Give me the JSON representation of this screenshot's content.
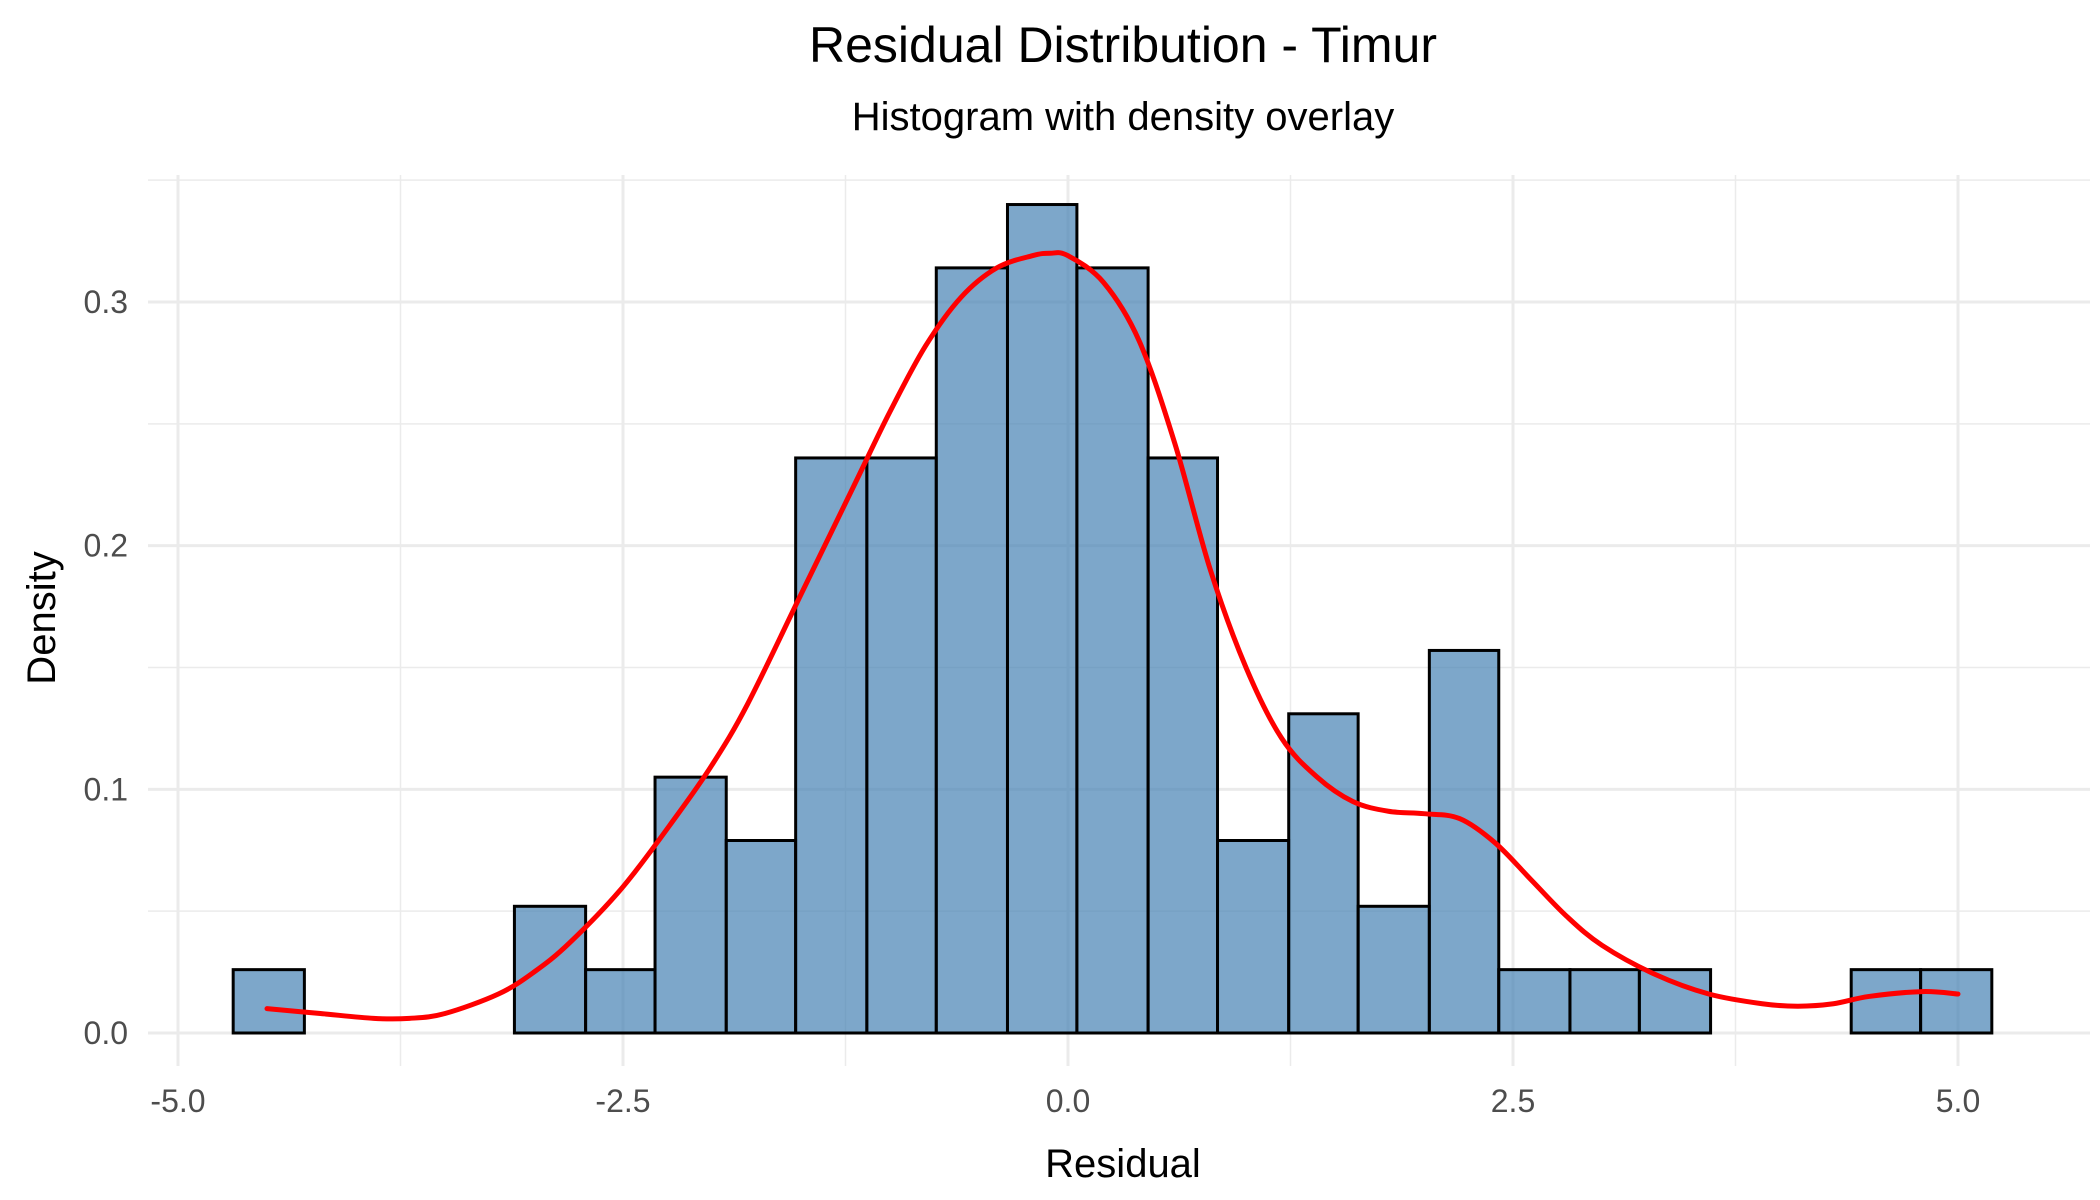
{
  "chart_data": {
    "type": "bar",
    "title": "Residual Distribution - Timur",
    "subtitle": "Histogram with density overlay",
    "xlabel": "Residual",
    "ylabel": "Density",
    "xlim": [
      -5.0,
      5.25
    ],
    "ylim": [
      0,
      0.345
    ],
    "x_ticks": [
      -5.0,
      -2.5,
      0.0,
      2.5,
      5.0
    ],
    "x_tick_labels": [
      "-5.0",
      "-2.5",
      "0.0",
      "2.5",
      "5.0"
    ],
    "y_ticks": [
      0.0,
      0.1,
      0.2,
      0.3
    ],
    "y_tick_labels": [
      "0.0",
      "0.1",
      "0.2",
      "0.3"
    ],
    "grid": true,
    "bin_width": 0.395,
    "bins": [
      {
        "x0": -4.69,
        "x1": -4.29,
        "density": 0.026
      },
      {
        "x0": -4.29,
        "x1": -3.9,
        "density": 0.0
      },
      {
        "x0": -3.9,
        "x1": -3.5,
        "density": 0.0
      },
      {
        "x0": -3.5,
        "x1": -3.11,
        "density": 0.0
      },
      {
        "x0": -3.11,
        "x1": -2.71,
        "density": 0.052
      },
      {
        "x0": -2.71,
        "x1": -2.32,
        "density": 0.026
      },
      {
        "x0": -2.32,
        "x1": -1.92,
        "density": 0.105
      },
      {
        "x0": -1.92,
        "x1": -1.53,
        "density": 0.079
      },
      {
        "x0": -1.53,
        "x1": -1.13,
        "density": 0.236
      },
      {
        "x0": -1.13,
        "x1": -0.74,
        "density": 0.236
      },
      {
        "x0": -0.74,
        "x1": -0.34,
        "density": 0.314
      },
      {
        "x0": -0.34,
        "x1": 0.05,
        "density": 0.34
      },
      {
        "x0": 0.05,
        "x1": 0.45,
        "density": 0.314
      },
      {
        "x0": 0.45,
        "x1": 0.84,
        "density": 0.236
      },
      {
        "x0": 0.84,
        "x1": 1.24,
        "density": 0.079
      },
      {
        "x0": 1.24,
        "x1": 1.63,
        "density": 0.131
      },
      {
        "x0": 1.63,
        "x1": 2.03,
        "density": 0.052
      },
      {
        "x0": 2.03,
        "x1": 2.42,
        "density": 0.157
      },
      {
        "x0": 2.42,
        "x1": 2.82,
        "density": 0.026
      },
      {
        "x0": 2.82,
        "x1": 3.21,
        "density": 0.026
      },
      {
        "x0": 3.21,
        "x1": 3.61,
        "density": 0.026
      },
      {
        "x0": 3.61,
        "x1": 4.0,
        "density": 0.0
      },
      {
        "x0": 4.0,
        "x1": 4.4,
        "density": 0.0
      },
      {
        "x0": 4.4,
        "x1": 4.79,
        "density": 0.026
      },
      {
        "x0": 4.79,
        "x1": 5.19,
        "density": 0.026
      }
    ],
    "density_curve": {
      "x": [
        -4.5,
        -4.2,
        -3.9,
        -3.7,
        -3.5,
        -3.2,
        -3.0,
        -2.8,
        -2.5,
        -2.2,
        -2.0,
        -1.8,
        -1.5,
        -1.2,
        -1.0,
        -0.8,
        -0.6,
        -0.4,
        -0.2,
        -0.1,
        0.0,
        0.2,
        0.4,
        0.6,
        0.8,
        1.0,
        1.2,
        1.4,
        1.6,
        1.8,
        2.0,
        2.2,
        2.4,
        2.6,
        2.8,
        3.0,
        3.3,
        3.6,
        3.9,
        4.1,
        4.3,
        4.5,
        4.8,
        5.0
      ],
      "y": [
        0.01,
        0.008,
        0.006,
        0.006,
        0.008,
        0.016,
        0.025,
        0.037,
        0.06,
        0.089,
        0.11,
        0.135,
        0.18,
        0.225,
        0.255,
        0.282,
        0.302,
        0.314,
        0.319,
        0.32,
        0.319,
        0.308,
        0.284,
        0.242,
        0.19,
        0.15,
        0.121,
        0.105,
        0.095,
        0.091,
        0.09,
        0.088,
        0.078,
        0.063,
        0.048,
        0.036,
        0.024,
        0.016,
        0.012,
        0.011,
        0.012,
        0.015,
        0.017,
        0.016
      ]
    },
    "colors": {
      "bar_fill": "#4682b4",
      "bar_stroke": "#000000",
      "density_line": "#ff0000",
      "grid": "#ebebeb"
    }
  }
}
